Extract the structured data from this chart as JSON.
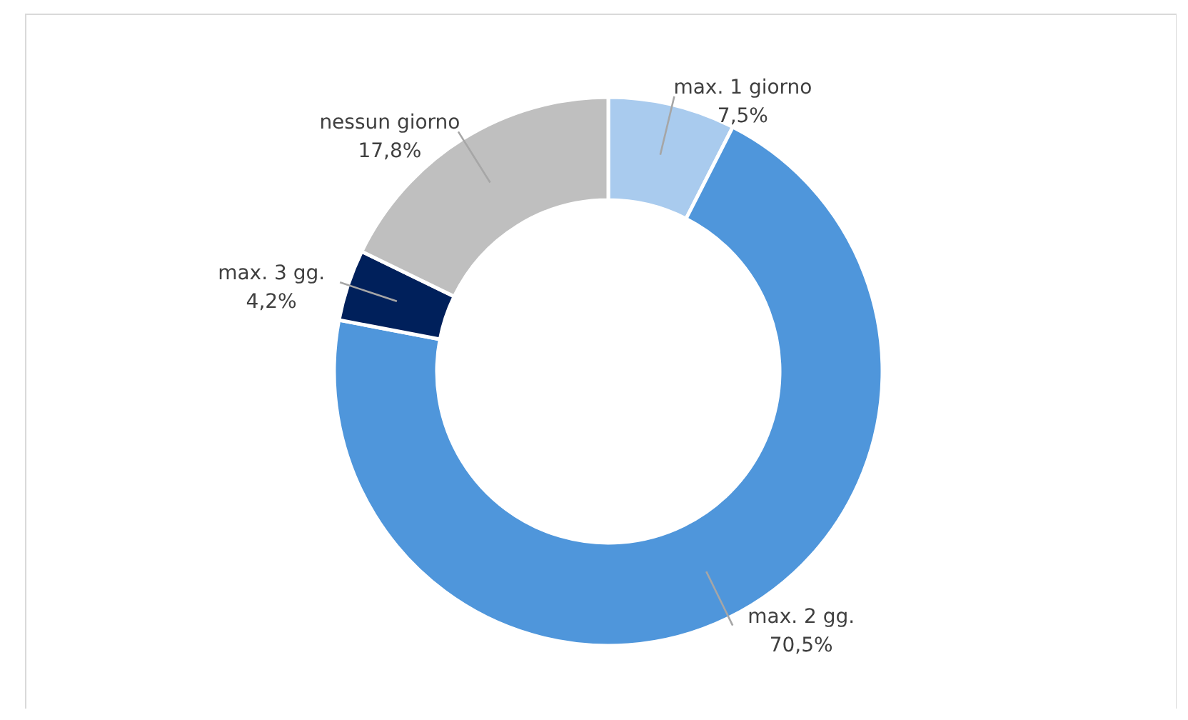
{
  "chart_data": {
    "type": "donut",
    "categories": [
      "max. 1 giorno",
      "max. 2 gg.",
      "max. 3 gg.",
      "nessun giorno"
    ],
    "values": [
      7.5,
      70.5,
      4.2,
      17.8
    ],
    "colors": [
      "#a9cbee",
      "#4f96db",
      "#00205b",
      "#bfbfbf"
    ],
    "value_labels": [
      "7,5%",
      "70,5%",
      "4,2%",
      "17,8%"
    ]
  }
}
